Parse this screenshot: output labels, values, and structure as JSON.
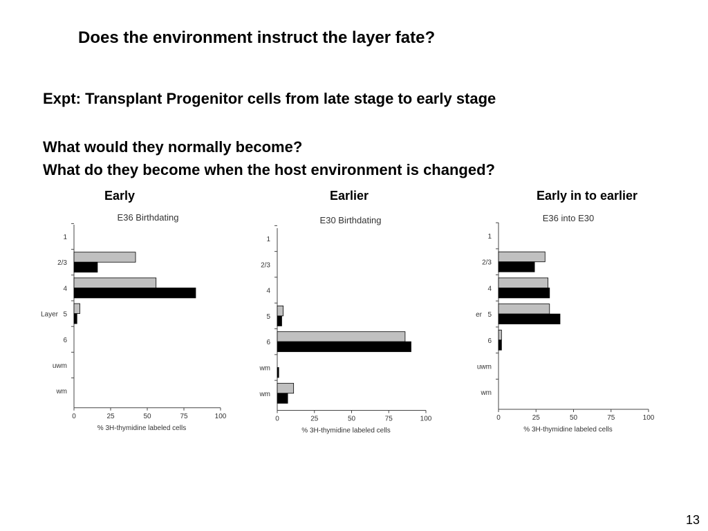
{
  "slide": {
    "title": "Does the environment instruct the layer fate?",
    "lines": [
      "Expt:  Transplant Progenitor cells from late stage to early stage",
      "What would they normally become?",
      "What do they become when the host environment is changed?"
    ],
    "page_number": "13"
  },
  "chart_data": [
    {
      "type": "hbar",
      "heading": "Early",
      "title": "E36 Birthdating",
      "y_label": "Layer",
      "categories": [
        "1",
        "2/3",
        "4",
        "5",
        "6",
        "uwm",
        "wm"
      ],
      "series": [
        {
          "color": "#c0c0c0",
          "values": [
            0,
            42,
            56,
            4,
            0,
            0,
            0
          ]
        },
        {
          "color": "#000000",
          "values": [
            0,
            16,
            83,
            2,
            0,
            0,
            0
          ]
        }
      ],
      "xlim": [
        0,
        100
      ],
      "xticks": [
        0,
        25,
        50,
        75,
        100
      ],
      "x_label": "% 3H-thymidine labeled cells"
    },
    {
      "type": "hbar",
      "heading": "Earlier",
      "title": "E30 Birthdating",
      "categories": [
        "1",
        "2/3",
        "4",
        "5",
        "6",
        "wm",
        "wm"
      ],
      "series": [
        {
          "color": "#c0c0c0",
          "values": [
            0,
            0,
            0,
            4,
            86,
            0,
            11
          ]
        },
        {
          "color": "#000000",
          "values": [
            0,
            0,
            0,
            3,
            90,
            1,
            7
          ]
        }
      ],
      "xlim": [
        0,
        100
      ],
      "xticks": [
        0,
        25,
        50,
        75,
        100
      ],
      "x_label": "% 3H-thymidine labeled cells"
    },
    {
      "type": "hbar",
      "heading": "Early in to earlier",
      "title": "E36 into E30",
      "y_label": "er",
      "categories": [
        "1",
        "2/3",
        "4",
        "5",
        "6",
        "uwm",
        "wm"
      ],
      "series": [
        {
          "color": "#c0c0c0",
          "values": [
            0,
            31,
            33,
            34,
            2,
            0,
            0
          ]
        },
        {
          "color": "#000000",
          "values": [
            0,
            24,
            34,
            41,
            2,
            0,
            0
          ]
        }
      ],
      "xlim": [
        0,
        100
      ],
      "xticks": [
        0,
        25,
        50,
        75,
        100
      ],
      "x_label": "% 3H-thymidine labeled cells"
    }
  ]
}
